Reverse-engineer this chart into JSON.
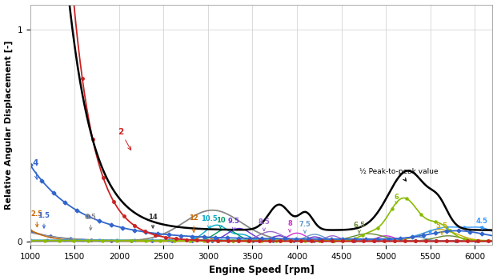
{
  "xlabel": "Engine Speed [rpm]",
  "ylabel": "Relative Angular Displacement [-]",
  "xlim": [
    1000,
    6200
  ],
  "ylim": [
    -0.015,
    1.12
  ],
  "yticks": [
    0,
    1
  ],
  "xticks": [
    1000,
    1500,
    2000,
    2500,
    3000,
    3500,
    4000,
    4500,
    5000,
    5500,
    6000
  ],
  "background_color": "#ffffff",
  "grid_color": "#cccccc",
  "peak_annotation_text": "½ Peak-to-peak value"
}
